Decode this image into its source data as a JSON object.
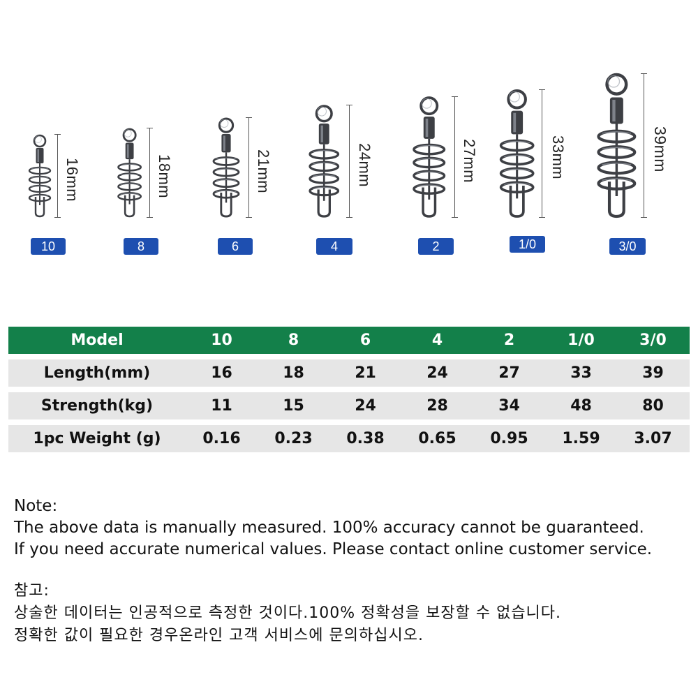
{
  "products": [
    {
      "model": "10",
      "length": "16mm"
    },
    {
      "model": "8",
      "length": "18mm"
    },
    {
      "model": "6",
      "length": "21mm"
    },
    {
      "model": "4",
      "length": "24mm"
    },
    {
      "model": "2",
      "length": "27mm"
    },
    {
      "model": "1/0",
      "length": "33mm"
    },
    {
      "model": "3/0",
      "length": "39mm"
    }
  ],
  "table": {
    "header_color": "#13804a",
    "row_color": "#e6e6e6",
    "header": {
      "label": "Model",
      "values": [
        "10",
        "8",
        "6",
        "4",
        "2",
        "1/0",
        "3/0"
      ]
    },
    "rows": [
      {
        "label": "Length(mm)",
        "values": [
          "16",
          "18",
          "21",
          "24",
          "27",
          "33",
          "39"
        ]
      },
      {
        "label": "Strength(kg)",
        "values": [
          "11",
          "15",
          "24",
          "28",
          "34",
          "48",
          "80"
        ]
      },
      {
        "label": "1pc Weight (g)",
        "values": [
          "0.16",
          "0.23",
          "0.38",
          "0.65",
          "0.95",
          "1.59",
          "3.07"
        ]
      }
    ]
  },
  "badge_color": "#1e4fb0",
  "notes": {
    "en_title": "Note:",
    "en_line1": "The above data is manually measured. 100% accuracy cannot be guaranteed.",
    "en_line2": "If you need accurate numerical values. Please contact online customer service.",
    "kr_title": "참고:",
    "kr_line1": "상술한 데이터는 인공적으로 측정한 것이다.100% 정확성을 보장할 수 없습니다.",
    "kr_line2": "정확한 값이 필요한 경우온라인 고객 서비스에 문의하십시오."
  }
}
